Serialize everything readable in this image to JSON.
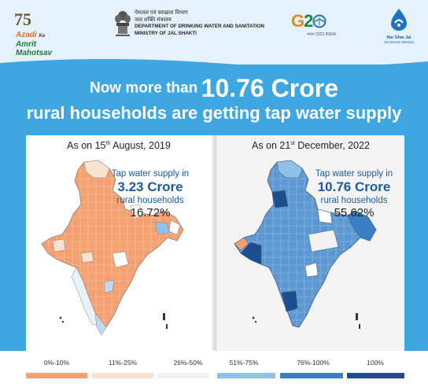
{
  "header": {
    "azadi": {
      "number": "75",
      "line1": "Azadi",
      "ka": "Ka",
      "line2": "Amrit Mahotsav"
    },
    "ministry": {
      "hindi1": "पेयजल एवं स्वच्छता विभाग",
      "hindi2": "जल शक्ति मंत्रालय",
      "english1": "DEPARTMENT OF DRINKING WATER AND SANITATION",
      "english2": "MINISTRY OF JAL SHAKTI"
    },
    "g20": {
      "g": "G",
      "two": "2",
      "sub": "भारत 2023 INDIA"
    },
    "hgj": {
      "line1": "Har Ghar Jal",
      "line2": "Jal Jeevan Mission"
    }
  },
  "headline": {
    "part1": "Now more than",
    "figure": "10.76 Crore",
    "line2": "rural households are getting tap water supply"
  },
  "panels": [
    {
      "date_prefix": "As on 15",
      "date_sup": "th",
      "date_suffix": " August, 2019",
      "stat_label": "Tap water supply in",
      "stat_value": "3.23 Crore",
      "stat_unit": "rural households",
      "stat_percent": "16.72%"
    },
    {
      "date_prefix": "As on 21",
      "date_sup": "st",
      "date_suffix": " December, 2022",
      "stat_label": "Tap water supply in",
      "stat_value": "10.76 Crore",
      "stat_unit": "rural households",
      "stat_percent": "55.62%"
    }
  ],
  "legend": [
    {
      "label": "0%-10%",
      "color": "#f4a070"
    },
    {
      "label": "11%-25%",
      "color": "#fbe1cf"
    },
    {
      "label": "26%-50%",
      "color": "#f2f2f2"
    },
    {
      "label": "51%-75%",
      "color": "#8ec0e8"
    },
    {
      "label": "76%-100%",
      "color": "#3a7fc4"
    },
    {
      "label": "100%",
      "color": "#1d4e8f"
    }
  ],
  "colors": {
    "background": "#3ea6e0",
    "header_bg": "#e6f2fb",
    "stat_text": "#1b5a9e"
  }
}
